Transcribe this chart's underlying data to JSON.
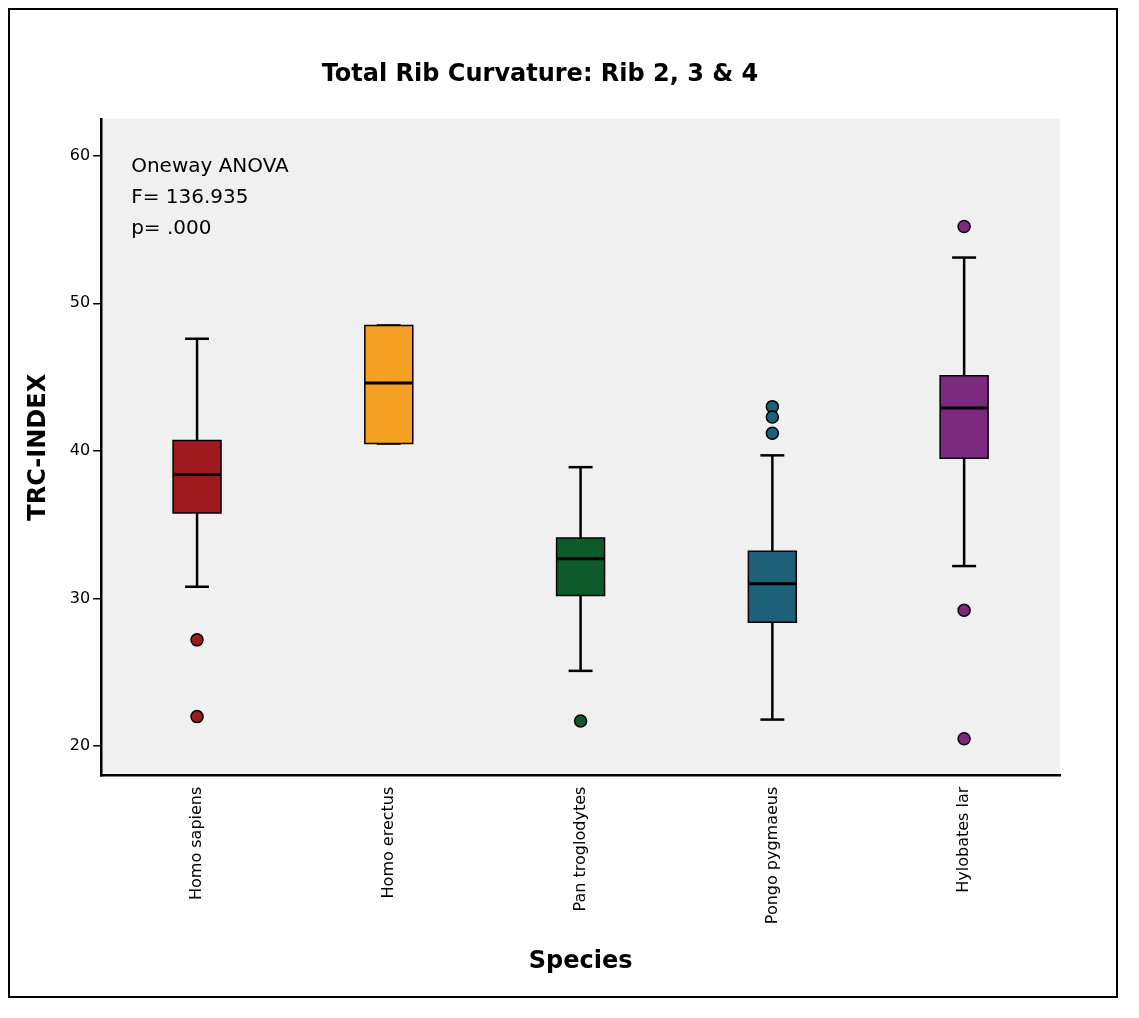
{
  "chart_data": {
    "type": "box",
    "title": "Total Rib Curvature: Rib 2, 3 & 4",
    "xlabel": "Species",
    "ylabel": "TRC-INDEX",
    "categories": [
      "Homo sapiens",
      "Homo erectus",
      "Pan troglodytes",
      "Pongo pygmaeus",
      "Hylobates lar"
    ],
    "colors": [
      "#9e1a1e",
      "#f5a023",
      "#0f5a2a",
      "#1e6078",
      "#7b2a7f"
    ],
    "boxes": [
      {
        "low": 30.8,
        "q1": 35.8,
        "median": 38.4,
        "q3": 40.7,
        "high": 47.6,
        "outliers": [
          27.2,
          22.0
        ]
      },
      {
        "low": 40.5,
        "q1": 40.5,
        "median": 44.6,
        "q3": 48.5,
        "high": 48.5
      },
      {
        "low": 25.1,
        "q1": 30.2,
        "median": 32.7,
        "q3": 34.1,
        "high": 38.9,
        "outliers": [
          21.7
        ]
      },
      {
        "low": 21.8,
        "q1": 28.4,
        "median": 31.0,
        "q3": 33.2,
        "high": 39.7,
        "outliers": [
          43.0,
          42.3,
          41.2
        ]
      },
      {
        "low": 32.2,
        "q1": 39.5,
        "median": 42.9,
        "q3": 45.1,
        "high": 53.1,
        "outliers": [
          55.2,
          29.2,
          20.5
        ]
      }
    ],
    "ylim": [
      18,
      62.5
    ],
    "yticks": [
      20,
      30,
      40,
      50,
      60
    ],
    "grid": false,
    "legend": false,
    "annotations": [
      "Oneway ANOVA",
      "F= 136.935",
      "p= .000"
    ]
  }
}
